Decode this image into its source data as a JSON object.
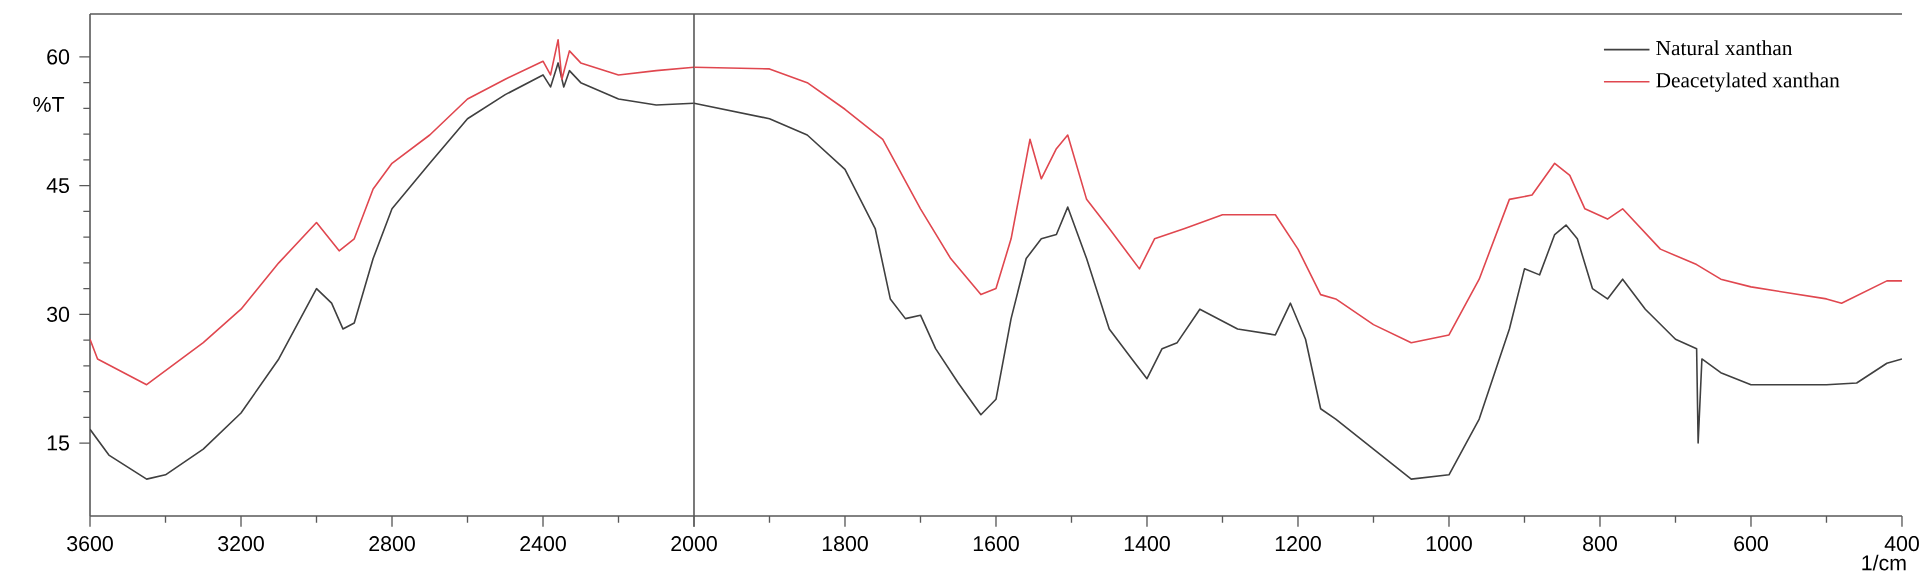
{
  "chart_data": [
    {
      "type": "line",
      "ylabel": "%T",
      "xlim": [
        3600,
        2000
      ],
      "ylim": [
        6.5,
        65
      ],
      "xticks": [
        3600,
        3200,
        2800,
        2400,
        {
          "value": 2000,
          "label": null
        }
      ],
      "yticks": [
        15,
        30,
        45,
        60
      ],
      "series": [
        {
          "color": "#404040",
          "x": [
            3600,
            3550,
            3450,
            3400,
            3300,
            3200,
            3100,
            3000,
            2960,
            2930,
            2900,
            2850,
            2800,
            2700,
            2600,
            2500,
            2400,
            2380,
            2360,
            2345,
            2330,
            2300,
            2200,
            2100,
            2000
          ],
          "values": [
            16.6,
            13.6,
            10.8,
            11.3,
            14.3,
            18.5,
            24.8,
            33,
            31.3,
            28.3,
            29,
            36.5,
            42.3,
            47.6,
            52.8,
            55.6,
            57.9,
            56.5,
            59.3,
            56.5,
            58.4,
            57,
            55.1,
            54.4,
            54.6
          ]
        },
        {
          "color": "#e0474f",
          "x": [
            3600,
            3580,
            3450,
            3300,
            3200,
            3100,
            3000,
            2940,
            2900,
            2850,
            2800,
            2700,
            2600,
            2500,
            2400,
            2380,
            2360,
            2350,
            2330,
            2300,
            2200,
            2100,
            2000
          ],
          "values": [
            27.1,
            24.8,
            21.8,
            26.7,
            30.6,
            36,
            40.7,
            37.4,
            38.8,
            44.6,
            47.6,
            50.9,
            55.1,
            57.4,
            59.5,
            57.9,
            62,
            57.4,
            60.7,
            59.3,
            57.9,
            58.4,
            58.8
          ]
        }
      ]
    },
    {
      "type": "line",
      "xlabel": "1/cm",
      "xlim": [
        2000,
        400
      ],
      "ylim": [
        6.5,
        65
      ],
      "xticks": [
        2000,
        1800,
        1600,
        1400,
        1200,
        1000,
        800,
        600,
        400
      ],
      "tick_labels": "x",
      "legend": "top right",
      "series": [
        {
          "name": "Natural xanthan",
          "color": "#404040",
          "x": [
            2000,
            1900,
            1850,
            1800,
            1760,
            1740,
            1720,
            1700,
            1680,
            1650,
            1620,
            1600,
            1580,
            1560,
            1540,
            1520,
            1505,
            1480,
            1450,
            1420,
            1400,
            1380,
            1360,
            1330,
            1280,
            1230,
            1210,
            1190,
            1170,
            1150,
            1100,
            1050,
            1000,
            960,
            920,
            900,
            880,
            860,
            845,
            830,
            810,
            790,
            770,
            740,
            700,
            672,
            670,
            665,
            640,
            600,
            500,
            460,
            420,
            400
          ],
          "values": [
            54.6,
            52.8,
            50.9,
            46.9,
            40,
            31.8,
            29.5,
            29.9,
            26,
            22,
            18.3,
            20.1,
            29.5,
            36.5,
            38.8,
            39.3,
            42.5,
            36.5,
            28.3,
            24.8,
            22.5,
            26,
            26.7,
            30.6,
            28.3,
            27.6,
            31.3,
            27.1,
            19,
            17.8,
            14.3,
            10.8,
            11.3,
            17.8,
            28.3,
            35.3,
            34.6,
            39.3,
            40.4,
            38.8,
            33,
            31.8,
            34.1,
            30.6,
            27.1,
            26,
            15,
            24.8,
            23.2,
            21.8,
            21.8,
            22,
            24.3,
            24.8
          ]
        },
        {
          "name": "Deacetylated xanthan",
          "color": "#e0474f",
          "x": [
            2000,
            1900,
            1850,
            1800,
            1750,
            1700,
            1660,
            1620,
            1600,
            1580,
            1555,
            1540,
            1520,
            1505,
            1480,
            1450,
            1410,
            1390,
            1350,
            1300,
            1230,
            1200,
            1170,
            1150,
            1100,
            1050,
            1000,
            960,
            920,
            890,
            860,
            840,
            820,
            790,
            770,
            720,
            672,
            640,
            600,
            500,
            480,
            420,
            400
          ],
          "values": [
            58.8,
            58.6,
            57,
            53.9,
            50.4,
            42.3,
            36.5,
            32.3,
            33,
            38.8,
            50.4,
            45.8,
            49.3,
            50.9,
            43.4,
            40,
            35.3,
            38.8,
            40,
            41.6,
            41.6,
            37.6,
            32.3,
            31.8,
            28.8,
            26.7,
            27.6,
            34.1,
            43.4,
            43.9,
            47.6,
            46.2,
            42.3,
            41.1,
            42.3,
            37.6,
            35.8,
            34.1,
            33.2,
            31.8,
            31.3,
            33.9,
            33.9
          ]
        }
      ]
    }
  ]
}
